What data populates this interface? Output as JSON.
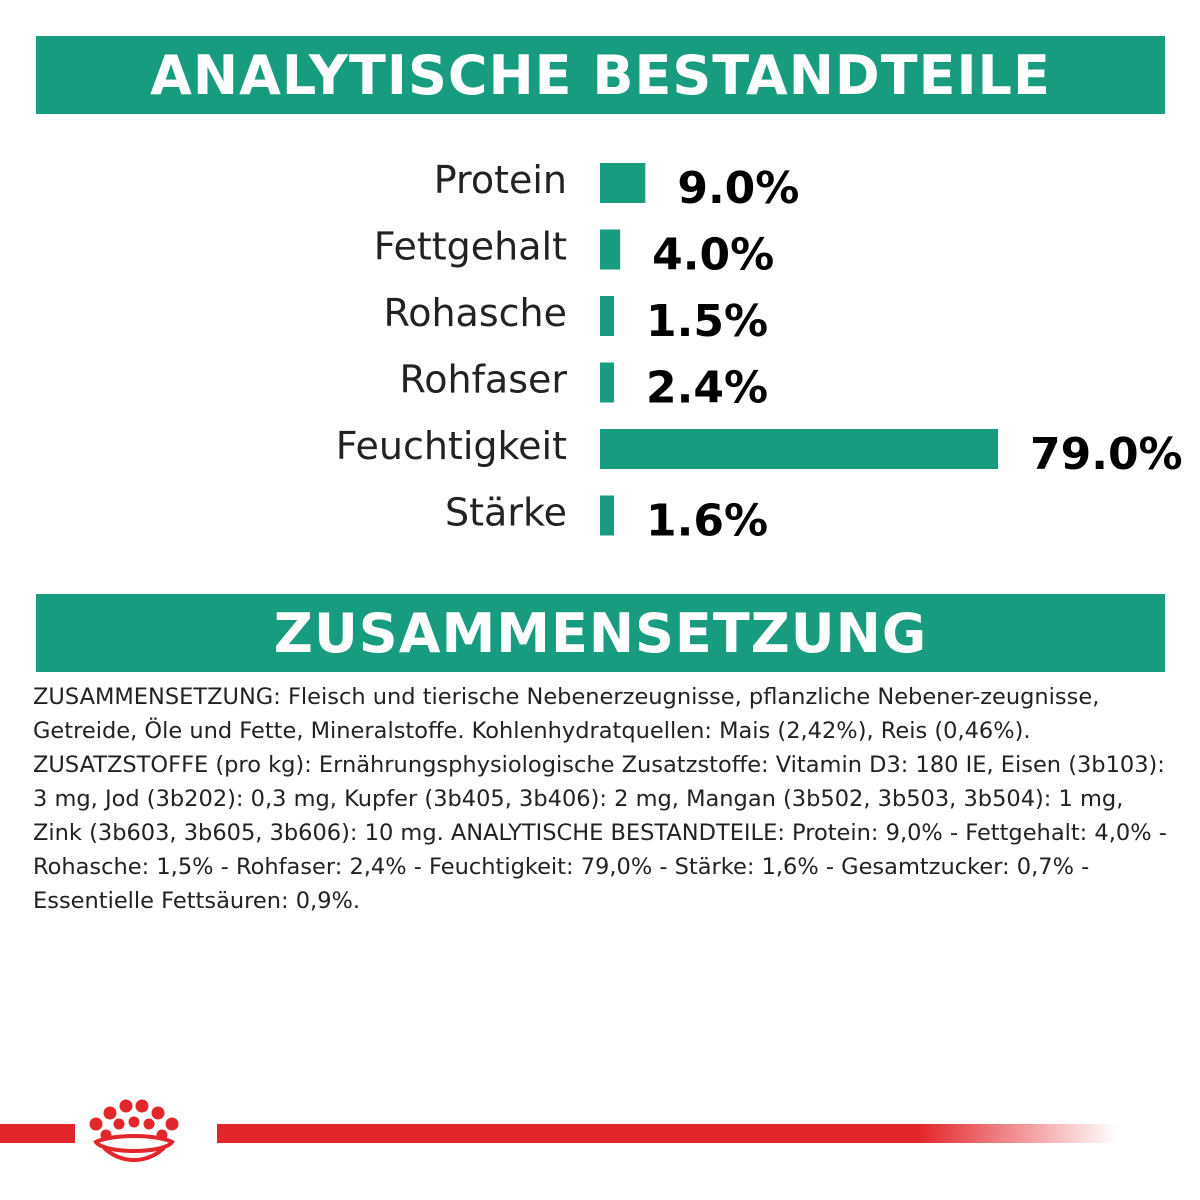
{
  "section1": {
    "title": "ANALYTISCHE BESTANDTEILE"
  },
  "section2": {
    "title": "ZUSAMMENSETZUNG",
    "text": "ZUSAMMENSETZUNG: Fleisch und tierische Nebenerzeugnisse, pflanzliche Nebener-zeugnisse, Getreide, Öle und Fette, Mineralstoffe. Kohlenhydratquellen: Mais (2,42%), Reis (0,46%). ZUSATZSTOFFE (pro kg): Ernährungsphysiologische Zusatzstoffe: Vitamin D3: 180 IE, Eisen (3b103): 3 mg, Jod (3b202): 0,3 mg, Kupfer (3b405, 3b406): 2 mg, Mangan (3b502, 3b503, 3b504): 1 mg, Zink (3b603, 3b605, 3b606): 10 mg. ANALYTISCHE BESTANDTEILE: Protein: 9,0% - Fettgehalt: 4,0% - Rohasche: 1,5% - Rohfaser: 2,4% - Feuchtigkeit: 79,0% - Stärke: 1,6% - Gesamtzucker: 0,7% - Essentielle Fettsäuren: 0,9%."
  },
  "colors": {
    "brand_green": "#189c80",
    "brand_red": "#e3262b"
  },
  "logo": {
    "icon": "royal-canin-crown-icon"
  },
  "chart_data": {
    "type": "bar",
    "orientation": "horizontal",
    "categories": [
      "Protein",
      "Fettgehalt",
      "Rohasche",
      "Rohfaser",
      "Feuchtigkeit",
      "Stärke"
    ],
    "values": [
      9.0,
      4.0,
      1.5,
      2.4,
      79.0,
      1.6
    ],
    "value_labels": [
      "9.0%",
      "4.0%",
      "1.5%",
      "2.4%",
      "79.0%",
      "1.6%"
    ],
    "unit": "%",
    "grid": false,
    "legend": "none"
  }
}
